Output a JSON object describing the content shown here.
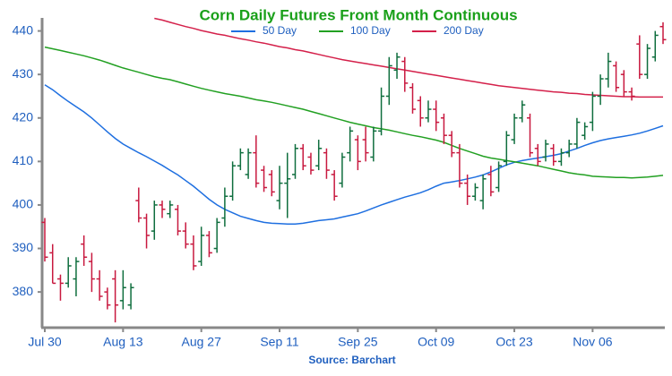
{
  "chart_data": {
    "type": "ohlc",
    "title": "Corn Daily Futures Front Month Continuous",
    "source": "Source: Barchart",
    "categories": [
      "Jul 30",
      null,
      null,
      null,
      null,
      null,
      null,
      null,
      null,
      null,
      "Aug 13",
      null,
      null,
      null,
      null,
      null,
      null,
      null,
      null,
      null,
      "Aug 27",
      null,
      null,
      null,
      null,
      null,
      null,
      null,
      null,
      null,
      "Sep 11",
      null,
      null,
      null,
      null,
      null,
      null,
      null,
      null,
      null,
      "Sep 25",
      null,
      null,
      null,
      null,
      null,
      null,
      null,
      null,
      null,
      "Oct 09",
      null,
      null,
      null,
      null,
      null,
      null,
      null,
      null,
      null,
      "Oct 23",
      null,
      null,
      null,
      null,
      null,
      null,
      null,
      null,
      null,
      "Nov 06",
      null,
      null,
      null,
      null,
      null,
      null,
      null,
      null,
      null
    ],
    "open": [
      396,
      389,
      383,
      382,
      383,
      391,
      387,
      383,
      380,
      383,
      378,
      377,
      401,
      397,
      394,
      400,
      398,
      399,
      394,
      391,
      387,
      393,
      390,
      397,
      402,
      409,
      407,
      412,
      408,
      407,
      401,
      405,
      407,
      413,
      411,
      409,
      412,
      407,
      405,
      412,
      415,
      415,
      411,
      417,
      425,
      431,
      433,
      427,
      424,
      420,
      422,
      420,
      416,
      412,
      405,
      402,
      401,
      407,
      404,
      410,
      415,
      420,
      420,
      413,
      411,
      413,
      410,
      412,
      414,
      416,
      419,
      425,
      429,
      432,
      430,
      426,
      437,
      430,
      434,
      441
    ],
    "high": [
      397,
      391,
      384,
      388,
      388,
      393,
      389,
      385,
      381,
      385,
      385,
      382,
      404,
      398,
      401,
      401,
      401,
      400,
      396,
      393,
      395,
      394,
      397,
      404,
      410,
      413,
      413,
      416,
      409,
      408,
      409,
      412,
      414,
      414,
      412,
      415,
      413,
      408,
      412,
      418,
      416,
      418,
      418,
      427,
      434,
      435,
      434,
      428,
      425,
      424,
      424,
      421,
      417,
      414,
      407,
      405,
      407,
      409,
      410,
      417,
      421,
      424,
      421,
      414,
      415,
      414,
      413,
      415,
      420,
      419,
      426,
      430,
      435,
      433,
      431,
      427,
      439,
      437,
      440,
      442
    ],
    "low": [
      387,
      382,
      378,
      381,
      379,
      386,
      380,
      378,
      376,
      373,
      376,
      376,
      396,
      390,
      392,
      397,
      397,
      393,
      390,
      385,
      386,
      388,
      389,
      395,
      401,
      408,
      406,
      404,
      403,
      402,
      399,
      397,
      406,
      408,
      407,
      408,
      406,
      401,
      404,
      410,
      408,
      410,
      410,
      416,
      423,
      429,
      426,
      421,
      418,
      419,
      417,
      414,
      411,
      404,
      400,
      401,
      399,
      402,
      403,
      409,
      414,
      419,
      411,
      409,
      410,
      409,
      409,
      411,
      413,
      415,
      417,
      423,
      427,
      426,
      425,
      424,
      429,
      429,
      433,
      437
    ],
    "close": [
      388,
      382,
      382,
      386,
      387,
      388,
      383,
      379,
      377,
      377,
      381,
      381,
      397,
      393,
      400,
      399,
      400,
      394,
      391,
      386,
      393,
      389,
      396,
      402,
      409,
      412,
      412,
      405,
      404,
      403,
      405,
      406,
      413,
      409,
      408,
      413,
      408,
      402,
      411,
      417,
      410,
      412,
      417,
      425,
      432,
      434,
      428,
      422,
      420,
      422,
      419,
      416,
      412,
      405,
      402,
      404,
      406,
      403,
      409,
      416,
      420,
      423,
      412,
      410,
      414,
      410,
      412,
      414,
      419,
      418,
      425,
      429,
      433,
      427,
      426,
      425,
      430,
      436,
      439,
      438
    ],
    "up_color": "#0f6e3e",
    "down_color": "#c8193f",
    "series": [
      {
        "name": "50 Day",
        "color": "#1e6fe0",
        "values": [
          427.6,
          426.5,
          425.1,
          423.8,
          422.6,
          421.4,
          420,
          418.4,
          416.8,
          415.3,
          414,
          413,
          412,
          411.1,
          410.1,
          409.1,
          408,
          406.9,
          405.6,
          404.3,
          402.8,
          401.3,
          400,
          399,
          398.2,
          397.4,
          396.9,
          396.4,
          396,
          395.8,
          395.7,
          395.6,
          395.6,
          395.8,
          396.1,
          396.4,
          396.6,
          396.8,
          397.2,
          397.6,
          398,
          398.6,
          399.3,
          400,
          400.6,
          401.2,
          401.8,
          402.3,
          402.8,
          403.5,
          404.3,
          405,
          405.3,
          405.6,
          406,
          406.4,
          406.9,
          407.6,
          408.4,
          409.2,
          409.8,
          410.2,
          410.5,
          410.8,
          411.1,
          411.4,
          411.8,
          412.4,
          413,
          413.7,
          414.3,
          414.8,
          415.2,
          415.5,
          415.8,
          416.1,
          416.5,
          417,
          417.6,
          418.2
        ]
      },
      {
        "name": "100 Day",
        "color": "#22a022",
        "values": [
          436.3,
          435.9,
          435.5,
          435.1,
          434.7,
          434.3,
          433.8,
          433.3,
          432.7,
          432.1,
          431.5,
          431,
          430.5,
          430,
          429.5,
          429.1,
          428.8,
          428.3,
          427.8,
          427.3,
          426.8,
          426.4,
          426,
          425.6,
          425.3,
          425,
          424.6,
          424.2,
          423.9,
          423.6,
          423.2,
          422.8,
          422.4,
          422,
          421.5,
          421,
          420.5,
          420,
          419.5,
          419,
          418.6,
          418.2,
          417.8,
          417.5,
          417.2,
          416.8,
          416.4,
          416,
          415.7,
          415.3,
          414.9,
          414.4,
          413.7,
          413,
          412.4,
          411.8,
          411.2,
          410.8,
          410.5,
          410.2,
          409.9,
          409.6,
          409.3,
          409,
          408.6,
          408.2,
          407.8,
          407.4,
          407.1,
          406.9,
          406.6,
          406.5,
          406.4,
          406.3,
          406.3,
          406.2,
          406.3,
          406.4,
          406.6,
          406.8
        ]
      },
      {
        "name": "200 Day",
        "color": "#d4204a",
        "values": [
          null,
          null,
          null,
          null,
          null,
          null,
          null,
          null,
          null,
          null,
          null,
          null,
          null,
          null,
          442.9,
          442.5,
          442,
          441.5,
          441,
          440.6,
          440.1,
          439.7,
          439.3,
          439,
          438.6,
          438.2,
          437.9,
          437.5,
          437.2,
          436.8,
          436.4,
          436.1,
          435.7,
          435.4,
          435,
          434.6,
          434.2,
          433.8,
          433.4,
          433.1,
          432.8,
          432.5,
          432.2,
          431.9,
          431.6,
          431.3,
          431,
          430.7,
          430.4,
          430.1,
          429.8,
          429.5,
          429.2,
          428.9,
          428.6,
          428.3,
          428,
          427.7,
          427.4,
          427.2,
          427,
          426.8,
          426.6,
          426.4,
          426.2,
          426,
          425.9,
          425.7,
          425.6,
          425.4,
          425.3,
          425.2,
          425.1,
          425,
          424.9,
          424.9,
          424.8,
          424.8,
          424.8,
          424.8
        ]
      }
    ],
    "ylim": [
      372,
      443
    ],
    "yticks": [
      380,
      390,
      400,
      410,
      420,
      430,
      440
    ],
    "grid": false,
    "legend": "top",
    "title_color": "#1aa01a"
  }
}
